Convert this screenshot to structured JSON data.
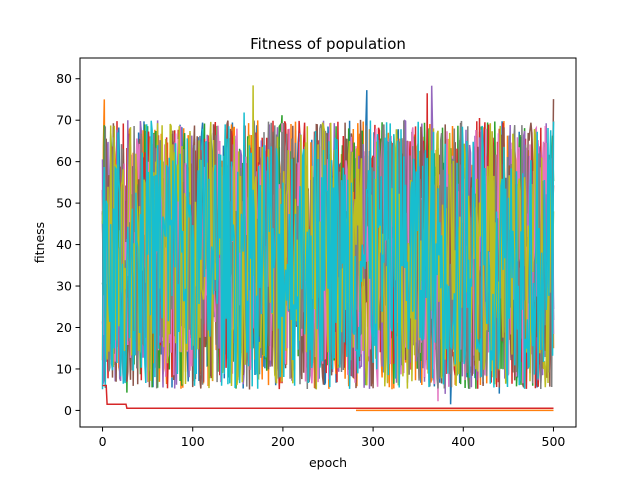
{
  "chart_data": {
    "type": "line",
    "title": "Fitness of population",
    "xlabel": "epoch",
    "ylabel": "fitness",
    "xlim": [
      -25,
      525
    ],
    "ylim": [
      -4,
      85
    ],
    "x_ticks": [
      0,
      100,
      200,
      300,
      400,
      500
    ],
    "y_ticks": [
      0,
      10,
      20,
      30,
      40,
      50,
      60,
      70,
      80
    ],
    "x_tick_labels": [
      "0",
      "100",
      "200",
      "300",
      "400",
      "500"
    ],
    "y_tick_labels": [
      "0",
      "10",
      "20",
      "30",
      "40",
      "50",
      "60",
      "70",
      "80"
    ],
    "grid": false,
    "epochs": 501,
    "series_colors": [
      "#1f77b4",
      "#ff7f0e",
      "#2ca02c",
      "#d62728",
      "#9467bd",
      "#8c564b",
      "#e377c2",
      "#7f7f7f",
      "#bcbd22",
      "#17becf"
    ],
    "noisy_series": {
      "count": 10,
      "y_range": [
        0.5,
        80.5
      ],
      "typical_range": [
        5,
        70
      ],
      "mean": 35
    },
    "elite_series": [
      {
        "color": "#d62728",
        "points": [
          [
            0,
            6
          ],
          [
            4,
            6
          ],
          [
            5,
            1.5
          ],
          [
            26,
            1.5
          ],
          [
            27,
            0.5
          ],
          [
            280,
            0.5
          ],
          [
            281,
            0.5
          ],
          [
            500,
            0.5
          ]
        ]
      },
      {
        "color": "#ff7f0e",
        "points": [
          [
            281,
            0
          ],
          [
            500,
            0
          ]
        ]
      }
    ]
  }
}
